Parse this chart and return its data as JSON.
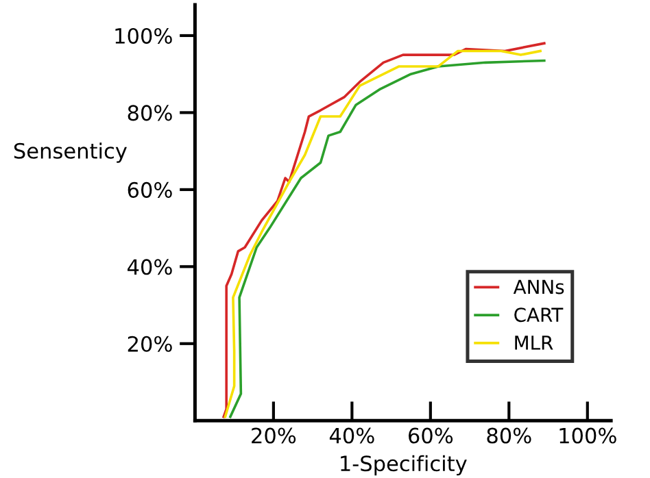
{
  "chart_data": {
    "type": "line",
    "xlabel": "1-Specificity",
    "ylabel": "Sensenticy",
    "xlim": [
      0,
      106
    ],
    "ylim": [
      0,
      108
    ],
    "xticks": [
      {
        "value": 20,
        "label": "20%"
      },
      {
        "value": 40,
        "label": "40%"
      },
      {
        "value": 60,
        "label": "60%"
      },
      {
        "value": 80,
        "label": "80%"
      },
      {
        "value": 100,
        "label": "100%"
      }
    ],
    "yticks": [
      {
        "value": 20,
        "label": "20%"
      },
      {
        "value": 40,
        "label": "40%"
      },
      {
        "value": 60,
        "label": "60%"
      },
      {
        "value": 80,
        "label": "80%"
      },
      {
        "value": 100,
        "label": "100%"
      }
    ],
    "grid": false,
    "legend": "bottom right",
    "marker": "none",
    "line_style": "solid",
    "series": [
      {
        "name": "ANNs",
        "color": "#d62728",
        "x": [
          7.3,
          8,
          8,
          9.3,
          11,
          12.7,
          17,
          21,
          23,
          24,
          28,
          29,
          32,
          38,
          42,
          48,
          53,
          66,
          69,
          79,
          84,
          89
        ],
        "values": [
          1,
          3,
          35,
          38,
          44,
          45,
          52,
          57,
          63,
          62,
          75,
          79,
          80.6,
          84,
          88,
          93,
          95,
          95,
          96.5,
          96,
          97,
          98
        ]
      },
      {
        "name": "CART",
        "color": "#2ca02c",
        "x": [
          9,
          11.7,
          11.3,
          15.7,
          19,
          27,
          32,
          34,
          37,
          41,
          47,
          55,
          62,
          74,
          89
        ],
        "values": [
          1,
          7,
          32,
          45,
          50,
          63,
          67,
          74,
          75,
          82,
          86,
          90,
          92,
          93,
          93.5
        ]
      },
      {
        "name": "MLR",
        "color": "#f5e000",
        "x": [
          7.7,
          10,
          10,
          9.7,
          14,
          17,
          24,
          28,
          32,
          37,
          42,
          52,
          62,
          67,
          78,
          83,
          88
        ],
        "values": [
          1,
          9,
          18,
          32,
          43,
          49,
          62,
          69,
          79,
          79,
          87,
          92,
          92,
          96,
          96,
          95,
          96
        ]
      }
    ]
  }
}
